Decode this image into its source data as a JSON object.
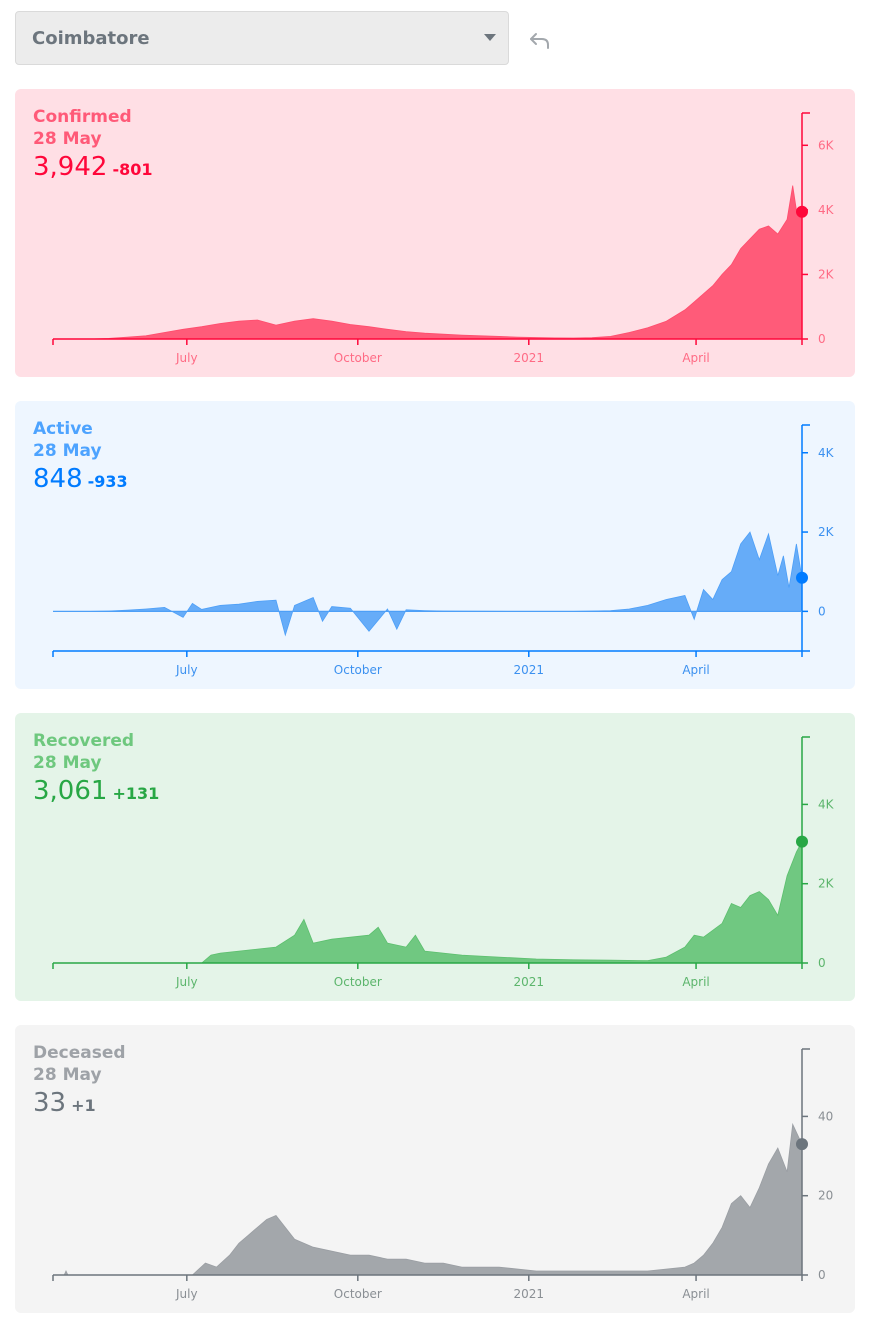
{
  "district_selector": {
    "selected": "Coimbatore"
  },
  "x_axis": {
    "labels": [
      "July",
      "October",
      "2021",
      "April"
    ],
    "range": [
      "2020-04-20",
      "2021-05-28"
    ]
  },
  "chart_data": [
    {
      "type": "area",
      "key": "confirmed",
      "title": "Confirmed",
      "date": "28 May",
      "value_text": "3,942",
      "delta_text": "-801",
      "latest_value": 3942,
      "ylim": [
        0,
        7000
      ],
      "y_ticks": [
        0,
        2000,
        4000,
        6000
      ],
      "y_tick_labels": [
        "0",
        "2K",
        "4K",
        "6K"
      ],
      "x": [
        0,
        20,
        30,
        40,
        50,
        60,
        70,
        80,
        90,
        100,
        110,
        120,
        130,
        140,
        150,
        160,
        170,
        180,
        190,
        200,
        210,
        220,
        230,
        240,
        250,
        260,
        270,
        280,
        290,
        300,
        310,
        320,
        330,
        340,
        345,
        350,
        355,
        360,
        365,
        370,
        375,
        380,
        385,
        390,
        395,
        398,
        400,
        403
      ],
      "values": [
        0,
        0,
        20,
        60,
        100,
        200,
        300,
        380,
        480,
        550,
        590,
        430,
        550,
        630,
        550,
        450,
        380,
        300,
        230,
        180,
        150,
        120,
        100,
        80,
        60,
        45,
        35,
        30,
        40,
        80,
        200,
        350,
        550,
        900,
        1150,
        1400,
        1650,
        2000,
        2300,
        2800,
        3100,
        3400,
        3500,
        3250,
        3700,
        4750,
        4000,
        3942
      ],
      "colors": {
        "bg": "#ffdfe5",
        "line": "#ff073a",
        "fill": "#ff4d6d",
        "fill_opacity": 0.9,
        "text": "#ff073a",
        "header": "#ff5a78",
        "date": "#ff5a78",
        "tick_text": "#ff6b85"
      }
    },
    {
      "type": "area",
      "key": "active",
      "title": "Active",
      "date": "28 May",
      "value_text": "848",
      "delta_text": "-933",
      "latest_value": 848,
      "ylim": [
        -1000,
        4700
      ],
      "y_ticks": [
        0,
        2000,
        4000
      ],
      "y_tick_labels": [
        "0",
        "2K",
        "4K"
      ],
      "x": [
        0,
        20,
        30,
        40,
        50,
        60,
        70,
        75,
        80,
        90,
        100,
        110,
        120,
        125,
        130,
        140,
        145,
        150,
        160,
        170,
        180,
        185,
        190,
        200,
        210,
        220,
        250,
        280,
        300,
        310,
        320,
        330,
        340,
        345,
        350,
        355,
        360,
        365,
        370,
        375,
        380,
        385,
        390,
        393,
        396,
        400,
        403
      ],
      "values": [
        0,
        0,
        10,
        30,
        60,
        100,
        -150,
        200,
        50,
        150,
        180,
        250,
        280,
        -600,
        150,
        350,
        -250,
        120,
        80,
        -500,
        60,
        -450,
        40,
        20,
        10,
        5,
        0,
        0,
        20,
        60,
        150,
        300,
        400,
        -200,
        550,
        300,
        800,
        1000,
        1700,
        2000,
        1300,
        1950,
        900,
        1400,
        600,
        1700,
        848
      ],
      "colors": {
        "bg": "#eef6ff",
        "line": "#007bff",
        "fill": "#4d9ff7",
        "fill_opacity": 0.85,
        "text": "#007bff",
        "header": "#4da3ff",
        "date": "#4da3ff",
        "tick_text": "#3c91f0"
      }
    },
    {
      "type": "area",
      "key": "recovered",
      "title": "Recovered",
      "date": "28 May",
      "value_text": "3,061",
      "delta_text": "+131",
      "latest_value": 3061,
      "ylim": [
        0,
        5700
      ],
      "y_ticks": [
        0,
        2000,
        4000
      ],
      "y_tick_labels": [
        "0",
        "2K",
        "4K"
      ],
      "x": [
        0,
        80,
        85,
        90,
        100,
        110,
        120,
        130,
        135,
        140,
        150,
        160,
        170,
        175,
        180,
        190,
        195,
        200,
        210,
        220,
        240,
        260,
        280,
        300,
        320,
        330,
        340,
        345,
        350,
        360,
        365,
        370,
        375,
        380,
        385,
        390,
        395,
        400,
        403
      ],
      "values": [
        0,
        0,
        200,
        250,
        300,
        350,
        400,
        700,
        1100,
        500,
        600,
        650,
        700,
        900,
        500,
        400,
        700,
        300,
        250,
        200,
        150,
        100,
        80,
        70,
        60,
        150,
        400,
        700,
        650,
        1000,
        1500,
        1400,
        1700,
        1800,
        1600,
        1200,
        2200,
        2800,
        3061
      ],
      "colors": {
        "bg": "#e4f4e8",
        "line": "#28a745",
        "fill": "#5cbf6e",
        "fill_opacity": 0.85,
        "text": "#28a745",
        "header": "#6ec87e",
        "date": "#6ec87e",
        "tick_text": "#5cb56c"
      }
    },
    {
      "type": "area",
      "key": "deceased",
      "title": "Deceased",
      "date": "28 May",
      "value_text": "33",
      "delta_text": "+1",
      "latest_value": 33,
      "ylim": [
        0,
        57
      ],
      "y_ticks": [
        0,
        20,
        40
      ],
      "y_tick_labels": [
        "0",
        "20",
        "40"
      ],
      "x": [
        0,
        6,
        7,
        8,
        75,
        82,
        88,
        95,
        100,
        105,
        110,
        115,
        120,
        125,
        130,
        135,
        140,
        150,
        160,
        170,
        180,
        190,
        200,
        210,
        220,
        240,
        260,
        280,
        300,
        320,
        340,
        345,
        350,
        355,
        360,
        365,
        370,
        375,
        380,
        385,
        390,
        395,
        398,
        403
      ],
      "values": [
        0,
        0,
        1,
        0,
        0,
        3,
        2,
        5,
        8,
        10,
        12,
        14,
        15,
        12,
        9,
        8,
        7,
        6,
        5,
        5,
        4,
        4,
        3,
        3,
        2,
        2,
        1,
        1,
        1,
        1,
        2,
        3,
        5,
        8,
        12,
        18,
        20,
        17,
        22,
        28,
        32,
        26,
        38,
        33
      ],
      "colors": {
        "bg": "#f4f4f4",
        "line": "#6c757d",
        "fill": "#9a9ea3",
        "fill_opacity": 0.9,
        "text": "#6c757d",
        "header": "#9ea2a7",
        "date": "#9ea2a7",
        "tick_text": "#8a8f94"
      }
    }
  ]
}
